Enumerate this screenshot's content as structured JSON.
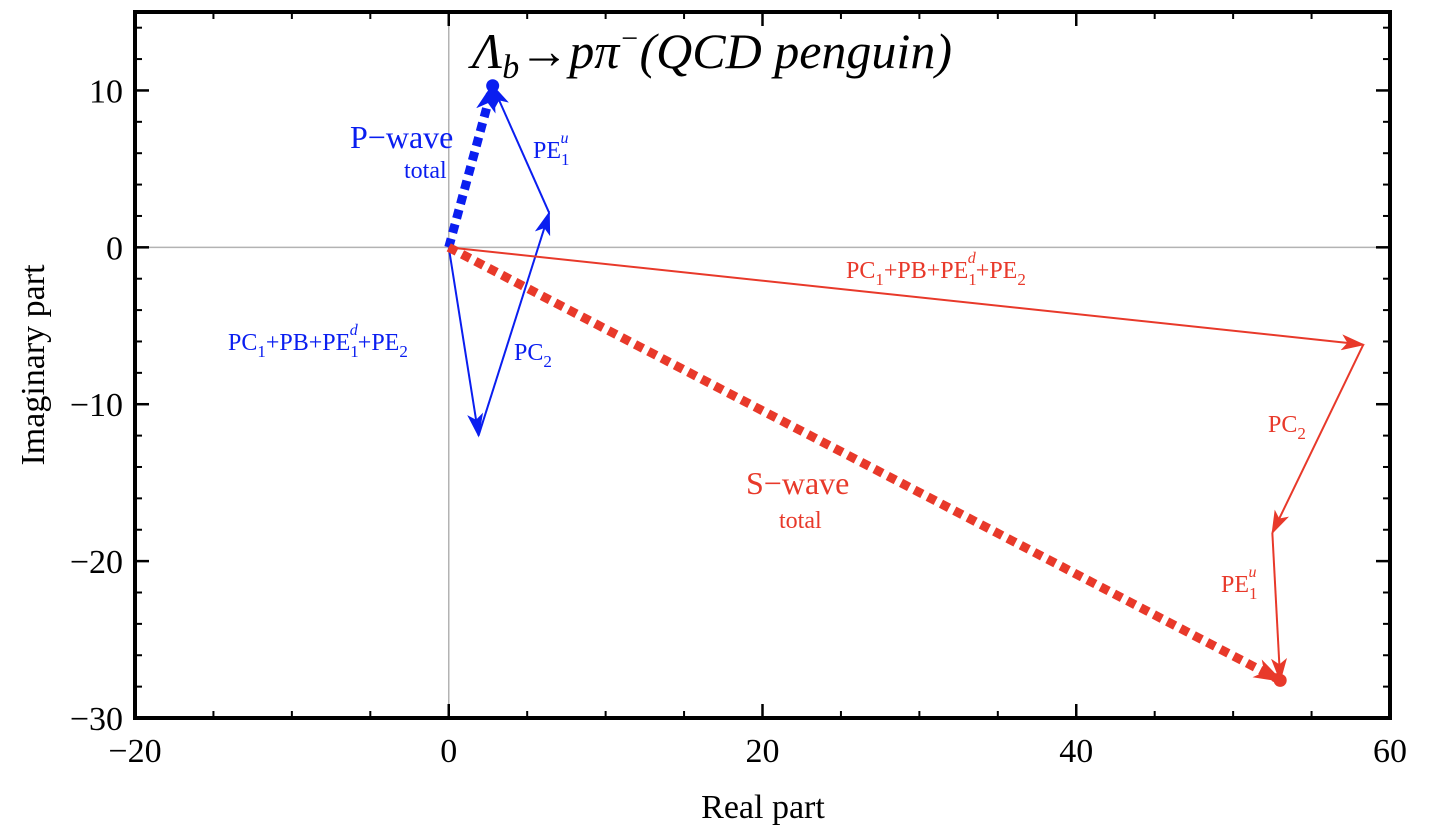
{
  "chart_data": {
    "type": "vector-diagram",
    "title_parts": {
      "lambda": "Λ",
      "lambda_sub": "b",
      "arrow": "→p",
      "pi": "π",
      "pi_sup": "−",
      "rest": "(QCD penguin)"
    },
    "xlabel": "Real part",
    "ylabel": "Imaginary part",
    "xlim": [
      -20,
      60
    ],
    "ylim": [
      -30,
      15
    ],
    "xticks": [
      -20,
      0,
      20,
      40,
      60
    ],
    "yticks": [
      -30,
      -20,
      -10,
      0,
      10
    ],
    "xtick_labels": [
      "−20",
      "0",
      "20",
      "40",
      "60"
    ],
    "ytick_labels": [
      "−30",
      "−20",
      "−10",
      "0",
      "10"
    ],
    "colors": {
      "p_wave": "#0a1ef0",
      "s_wave": "#e8392a",
      "grid_zero": "#b3b3b3",
      "frame": "#000000"
    },
    "series": [
      {
        "name": "P-wave",
        "color": "#0a1ef0",
        "vectors": [
          {
            "label": "PC1+PB+PE1d+PE2",
            "from": [
              0,
              0
            ],
            "to": [
              1.9,
              -12.0
            ],
            "style": "solid"
          },
          {
            "label": "PC2",
            "from": [
              1.9,
              -12.0
            ],
            "to": [
              6.4,
              2.2
            ],
            "style": "solid"
          },
          {
            "label": "PE1u",
            "from": [
              6.4,
              2.2
            ],
            "to": [
              2.8,
              10.3
            ],
            "style": "solid"
          },
          {
            "label": "total",
            "from": [
              0,
              0
            ],
            "to": [
              2.8,
              10.3
            ],
            "style": "dashed-thick"
          }
        ],
        "endpoint": [
          2.8,
          10.3
        ]
      },
      {
        "name": "S-wave",
        "color": "#e8392a",
        "vectors": [
          {
            "label": "PC1+PB+PE1d+PE2",
            "from": [
              0,
              0
            ],
            "to": [
              58.3,
              -6.2
            ],
            "style": "solid"
          },
          {
            "label": "PC2",
            "from": [
              58.3,
              -6.2
            ],
            "to": [
              52.5,
              -18.2
            ],
            "style": "solid"
          },
          {
            "label": "PE1u",
            "from": [
              52.5,
              -18.2
            ],
            "to": [
              53.0,
              -27.6
            ],
            "style": "solid"
          },
          {
            "label": "total",
            "from": [
              0,
              0
            ],
            "to": [
              53.0,
              -27.6
            ],
            "style": "dashed-thick"
          }
        ],
        "endpoint": [
          53.0,
          -27.6
        ]
      }
    ],
    "annotations": {
      "p_wave_title": "P−wave",
      "p_wave_sub": "total",
      "s_wave_title": "S−wave",
      "s_wave_sub": "total",
      "pe1u": {
        "base": "PE",
        "sub": "1",
        "sup": "u"
      },
      "pc2": {
        "base": "PC",
        "sub": "2"
      },
      "long": {
        "a": "PC",
        "a_sub": "1",
        "b": "+PB+PE",
        "b_sub": "1",
        "b_sup": "d",
        "c": "+PE",
        "c_sub": "2"
      }
    }
  }
}
